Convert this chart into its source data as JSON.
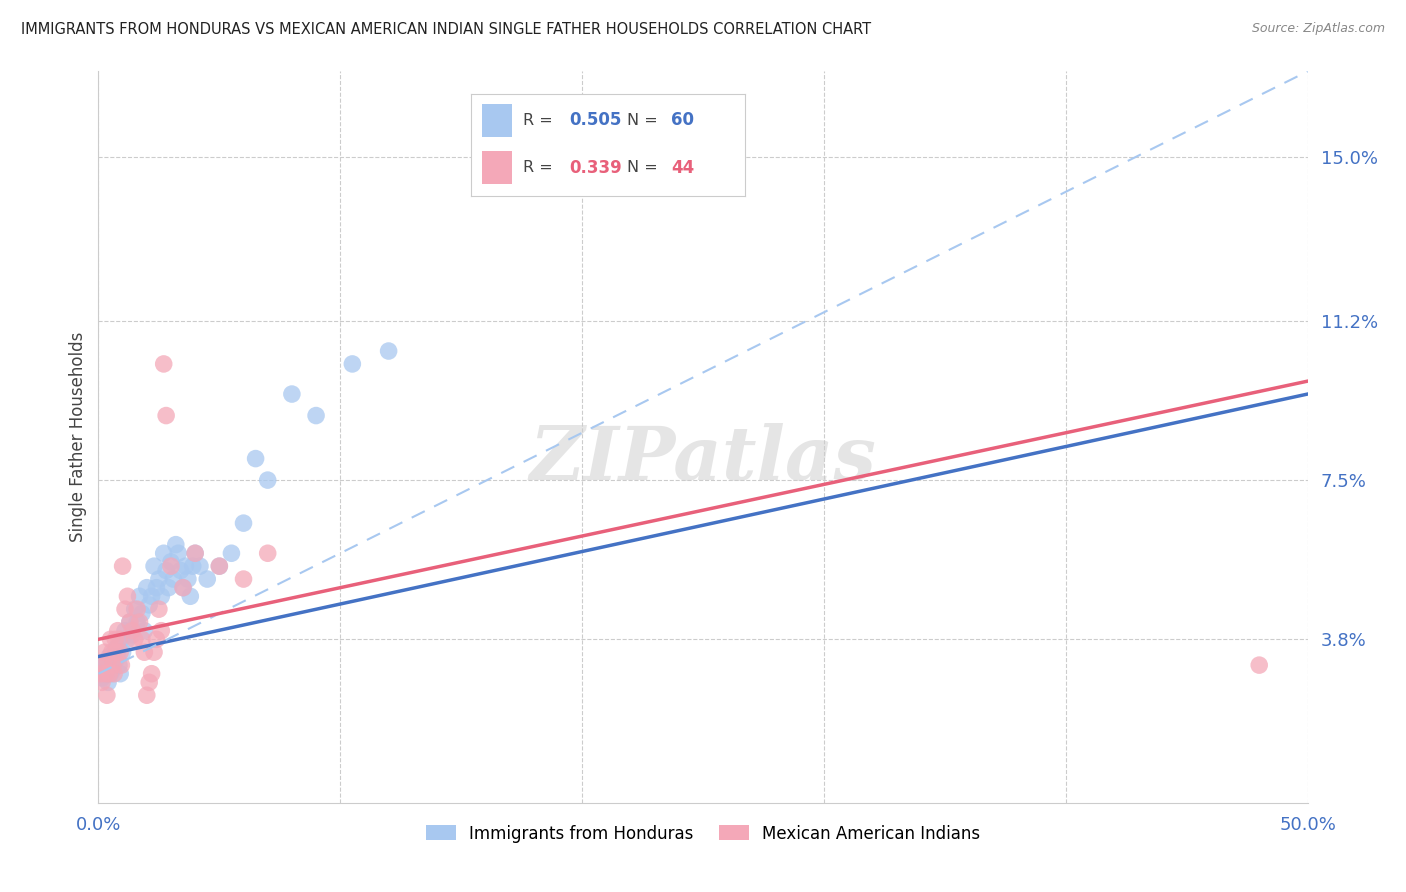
{
  "title": "IMMIGRANTS FROM HONDURAS VS MEXICAN AMERICAN INDIAN SINGLE FATHER HOUSEHOLDS CORRELATION CHART",
  "source": "Source: ZipAtlas.com",
  "ylabel": "Single Father Households",
  "ytick_values": [
    3.8,
    7.5,
    11.2,
    15.0
  ],
  "xlim": [
    0.0,
    50.0
  ],
  "ylim": [
    0.0,
    17.0
  ],
  "legend_blue_r": "0.505",
  "legend_blue_n": "60",
  "legend_pink_r": "0.339",
  "legend_pink_n": "44",
  "legend_blue_label": "Immigrants from Honduras",
  "legend_pink_label": "Mexican American Indians",
  "watermark": "ZIPatlas",
  "blue_color": "#A8C8F0",
  "pink_color": "#F4A8B8",
  "blue_line_color": "#4472C4",
  "pink_line_color": "#E8607A",
  "blue_dashed_color": "#A8C8F0",
  "blue_scatter": [
    [
      0.1,
      3.1
    ],
    [
      0.15,
      2.9
    ],
    [
      0.2,
      3.2
    ],
    [
      0.25,
      3.0
    ],
    [
      0.3,
      3.3
    ],
    [
      0.35,
      3.1
    ],
    [
      0.4,
      2.8
    ],
    [
      0.45,
      3.4
    ],
    [
      0.5,
      3.0
    ],
    [
      0.55,
      3.2
    ],
    [
      0.6,
      3.1
    ],
    [
      0.65,
      3.5
    ],
    [
      0.7,
      3.3
    ],
    [
      0.75,
      3.6
    ],
    [
      0.8,
      3.4
    ],
    [
      0.85,
      3.2
    ],
    [
      0.9,
      3.0
    ],
    [
      0.95,
      3.8
    ],
    [
      1.0,
      3.5
    ],
    [
      1.1,
      4.0
    ],
    [
      1.2,
      3.8
    ],
    [
      1.3,
      4.2
    ],
    [
      1.4,
      3.9
    ],
    [
      1.5,
      4.5
    ],
    [
      1.6,
      4.2
    ],
    [
      1.7,
      4.8
    ],
    [
      1.8,
      4.4
    ],
    [
      1.9,
      4.0
    ],
    [
      2.0,
      5.0
    ],
    [
      2.1,
      4.6
    ],
    [
      2.2,
      4.8
    ],
    [
      2.3,
      5.5
    ],
    [
      2.4,
      5.0
    ],
    [
      2.5,
      5.2
    ],
    [
      2.6,
      4.8
    ],
    [
      2.7,
      5.8
    ],
    [
      2.8,
      5.4
    ],
    [
      2.9,
      5.0
    ],
    [
      3.0,
      5.6
    ],
    [
      3.1,
      5.2
    ],
    [
      3.2,
      6.0
    ],
    [
      3.3,
      5.8
    ],
    [
      3.4,
      5.4
    ],
    [
      3.5,
      5.0
    ],
    [
      3.6,
      5.5
    ],
    [
      3.7,
      5.2
    ],
    [
      3.8,
      4.8
    ],
    [
      3.9,
      5.5
    ],
    [
      4.0,
      5.8
    ],
    [
      4.2,
      5.5
    ],
    [
      4.5,
      5.2
    ],
    [
      5.0,
      5.5
    ],
    [
      5.5,
      5.8
    ],
    [
      6.0,
      6.5
    ],
    [
      6.5,
      8.0
    ],
    [
      7.0,
      7.5
    ],
    [
      8.0,
      9.5
    ],
    [
      9.0,
      9.0
    ],
    [
      10.5,
      10.2
    ],
    [
      12.0,
      10.5
    ]
  ],
  "pink_scatter": [
    [
      0.1,
      3.0
    ],
    [
      0.15,
      2.8
    ],
    [
      0.2,
      3.2
    ],
    [
      0.25,
      3.5
    ],
    [
      0.3,
      3.0
    ],
    [
      0.35,
      2.5
    ],
    [
      0.4,
      3.3
    ],
    [
      0.45,
      3.0
    ],
    [
      0.5,
      3.8
    ],
    [
      0.55,
      3.5
    ],
    [
      0.6,
      3.2
    ],
    [
      0.65,
      3.0
    ],
    [
      0.7,
      3.8
    ],
    [
      0.75,
      3.5
    ],
    [
      0.8,
      4.0
    ],
    [
      0.85,
      3.8
    ],
    [
      0.9,
      3.5
    ],
    [
      0.95,
      3.2
    ],
    [
      1.0,
      5.5
    ],
    [
      1.1,
      4.5
    ],
    [
      1.2,
      4.8
    ],
    [
      1.3,
      4.2
    ],
    [
      1.4,
      4.0
    ],
    [
      1.5,
      3.8
    ],
    [
      1.6,
      4.5
    ],
    [
      1.7,
      4.2
    ],
    [
      1.8,
      3.8
    ],
    [
      1.9,
      3.5
    ],
    [
      2.0,
      2.5
    ],
    [
      2.1,
      2.8
    ],
    [
      2.2,
      3.0
    ],
    [
      2.3,
      3.5
    ],
    [
      2.4,
      3.8
    ],
    [
      2.5,
      4.5
    ],
    [
      2.6,
      4.0
    ],
    [
      2.7,
      10.2
    ],
    [
      2.8,
      9.0
    ],
    [
      3.0,
      5.5
    ],
    [
      3.5,
      5.0
    ],
    [
      4.0,
      5.8
    ],
    [
      5.0,
      5.5
    ],
    [
      6.0,
      5.2
    ],
    [
      7.0,
      5.8
    ],
    [
      48.0,
      3.2
    ]
  ],
  "blue_trendline": [
    0.0,
    50.0,
    3.4,
    9.5
  ],
  "blue_dashed": [
    0.0,
    50.0,
    3.0,
    17.0
  ],
  "pink_trendline": [
    0.0,
    50.0,
    3.8,
    9.8
  ]
}
